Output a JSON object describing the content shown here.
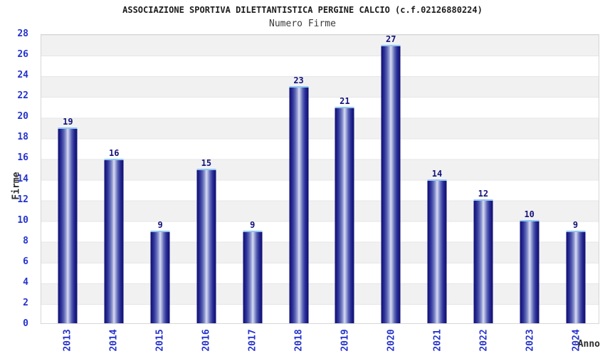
{
  "header": {
    "title": "ASSOCIAZIONE SPORTIVA DILETTANTISTICA PERGINE CALCIO (c.f.02126880224)",
    "subtitle": "Numero Firme"
  },
  "axes": {
    "y_title": "Firme",
    "x_title": "Anno",
    "y_ticks": [
      "0",
      "2",
      "4",
      "6",
      "8",
      "10",
      "12",
      "14",
      "16",
      "18",
      "20",
      "22",
      "24",
      "26",
      "28"
    ]
  },
  "chart_data": {
    "type": "bar",
    "title": "ASSOCIAZIONE SPORTIVA DILETTANTISTICA PERGINE CALCIO (c.f.02126880224)",
    "subtitle": "Numero Firme",
    "categories": [
      "2013",
      "2014",
      "2015",
      "2016",
      "2017",
      "2018",
      "2019",
      "2020",
      "2021",
      "2022",
      "2023",
      "2024"
    ],
    "values": [
      19,
      16,
      9,
      15,
      9,
      23,
      21,
      27,
      14,
      12,
      10,
      9
    ],
    "xlabel": "Anno",
    "ylabel": "Firme",
    "ylim": [
      0,
      28
    ],
    "y_tick_step": 2,
    "grid": true,
    "legend": "none",
    "bar_value_labels": true
  },
  "colors": {
    "tick_label": "#2533cc",
    "value_label": "#13137a",
    "bar_edge": "#0f0f6e",
    "bar_center": "#d9dcf0",
    "bar_cap": "#92c8f3",
    "stripe_gray": "#f1f1f2",
    "stripe_white": "#ffffff",
    "plot_border": "#d6d6d6",
    "title_text": "#1c1c1c"
  }
}
